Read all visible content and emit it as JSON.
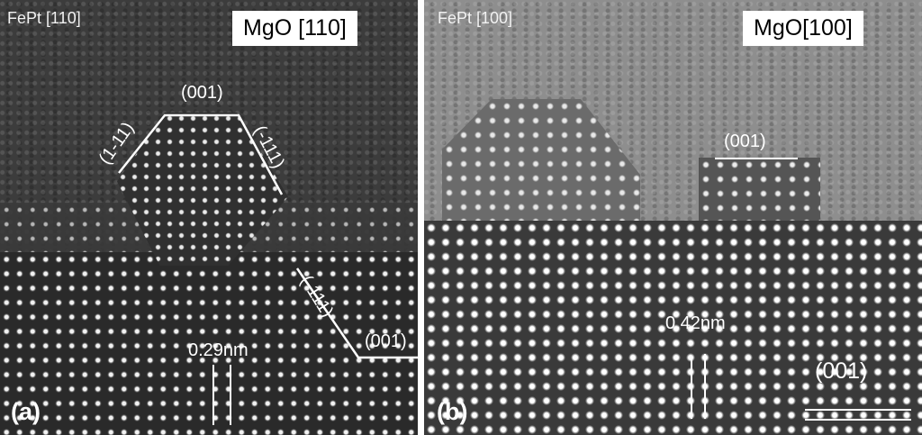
{
  "panels": [
    {
      "label": "(a)",
      "header": "FePt  [110]",
      "box_label": "MgO [110]",
      "annotations": {
        "facet_top": "(001)",
        "facet_left": "(1-11)",
        "facet_right": "(-111)",
        "substrate_facet_slant": "(-111)",
        "substrate_facet_flat": "(001)",
        "spacing": "0.29nm"
      }
    },
    {
      "label": "(b)",
      "header": "FePt  [100]",
      "box_label": "MgO[100]",
      "annotations": {
        "facet_top": "(001)",
        "substrate_facet": "(001)",
        "spacing": "0.42nm"
      }
    }
  ],
  "colors": {
    "annotation": "#ffffff",
    "divider": "#ffffff"
  }
}
